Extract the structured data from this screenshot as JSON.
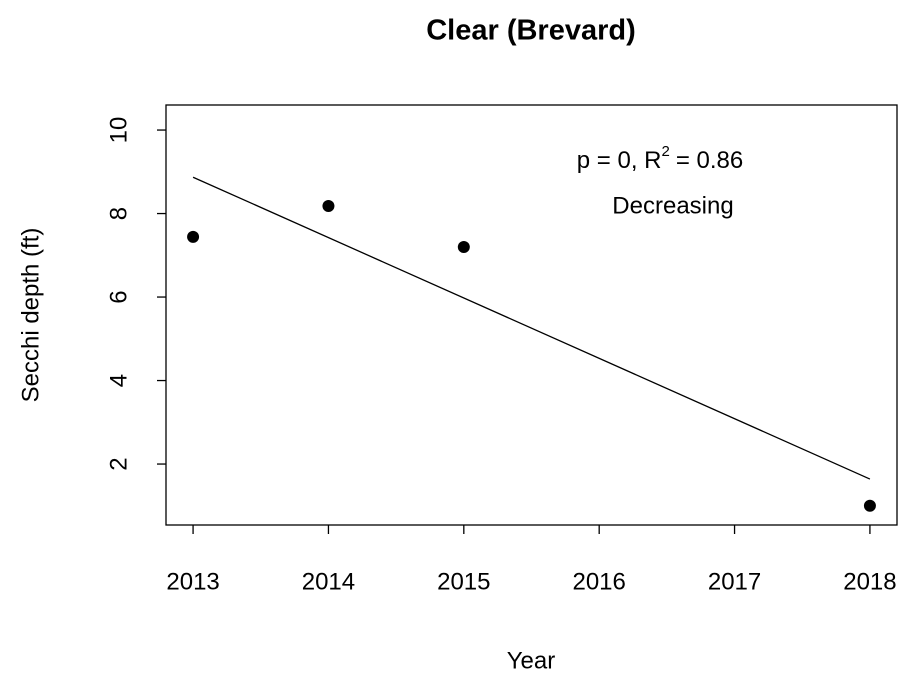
{
  "chart_data": {
    "type": "scatter",
    "title": "Clear (Brevard)",
    "xlabel": "Year",
    "ylabel": "Secchi depth (ft)",
    "x": [
      2013,
      2014,
      2015,
      2018
    ],
    "values": [
      7.44,
      8.18,
      7.2,
      1.0
    ],
    "color": "#000000",
    "trend": {
      "x": [
        2013,
        2018
      ],
      "values": [
        8.87,
        1.64
      ],
      "color": "#000000"
    },
    "annotation": {
      "prefix": "p = 0, R",
      "superscript": "2",
      "suffix": "= 0.86",
      "line2": "Decreasing"
    },
    "xlim": [
      2012.8,
      2018.2
    ],
    "xticks": [
      2013,
      2014,
      2015,
      2016,
      2017,
      2018
    ],
    "ylim": [
      0.54,
      10.6
    ],
    "yticks": [
      2,
      4,
      6,
      8,
      10
    ]
  }
}
